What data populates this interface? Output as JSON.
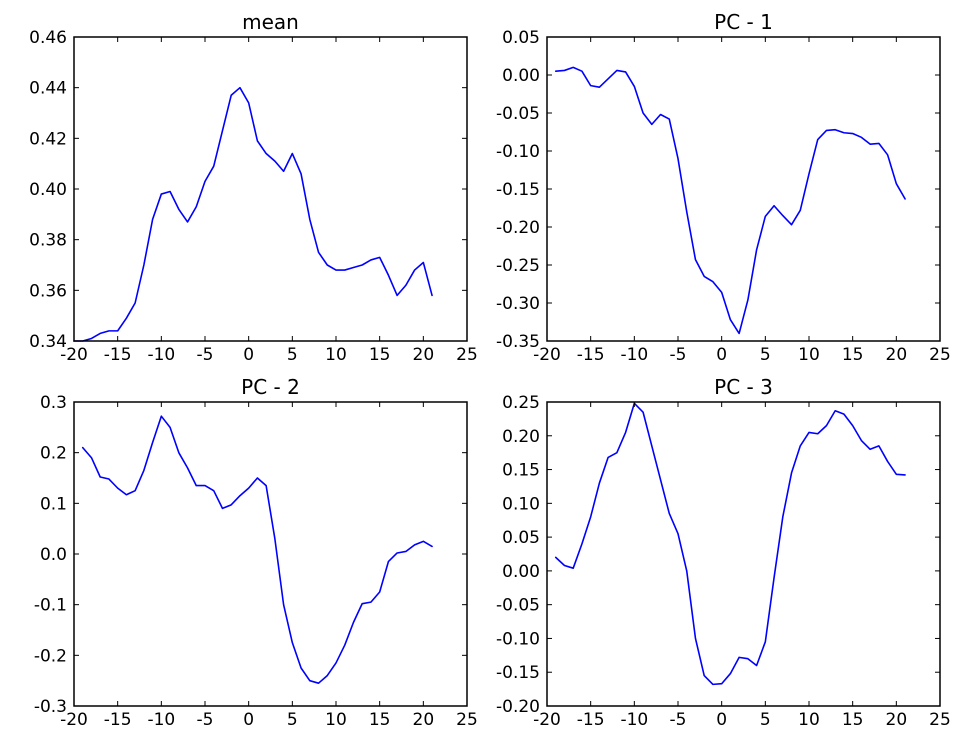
{
  "chart_data": [
    {
      "type": "line",
      "title": "mean",
      "xlabel": "",
      "ylabel": "",
      "xlim": [
        -20,
        25
      ],
      "ylim": [
        0.34,
        0.46
      ],
      "xticks": [
        -20,
        -15,
        -10,
        -5,
        0,
        5,
        10,
        15,
        20,
        25
      ],
      "xtick_labels": [
        "-20",
        "-15",
        "-10",
        "-5",
        "0",
        "5",
        "10",
        "15",
        "20",
        "25"
      ],
      "yticks": [
        0.34,
        0.36,
        0.38,
        0.4,
        0.42,
        0.44,
        0.46
      ],
      "ytick_labels": [
        "0.34",
        "0.36",
        "0.38",
        "0.40",
        "0.42",
        "0.44",
        "0.46"
      ],
      "grid": false,
      "color": "#0000ff",
      "x": [
        -20,
        -19,
        -18,
        -17,
        -16,
        -15,
        -14,
        -13,
        -12,
        -11,
        -10,
        -9,
        -8,
        -7,
        -6,
        -5,
        -4,
        -3,
        -2,
        -1,
        0,
        1,
        2,
        3,
        4,
        5,
        6,
        7,
        8,
        9,
        10,
        11,
        12,
        13,
        14,
        15,
        16,
        17,
        18,
        19,
        20,
        21
      ],
      "y": [
        0.34,
        0.34,
        0.341,
        0.343,
        0.344,
        0.344,
        0.349,
        0.355,
        0.37,
        0.388,
        0.398,
        0.399,
        0.392,
        0.387,
        0.393,
        0.403,
        0.409,
        0.423,
        0.437,
        0.44,
        0.434,
        0.419,
        0.414,
        0.411,
        0.407,
        0.414,
        0.406,
        0.388,
        0.375,
        0.37,
        0.368,
        0.368,
        0.369,
        0.37,
        0.372,
        0.373,
        0.366,
        0.358,
        0.362,
        0.368,
        0.371,
        0.358
      ]
    },
    {
      "type": "line",
      "title": "PC - 1",
      "xlabel": "",
      "ylabel": "",
      "xlim": [
        -20,
        25
      ],
      "ylim": [
        -0.35,
        0.05
      ],
      "xticks": [
        -20,
        -15,
        -10,
        -5,
        0,
        5,
        10,
        15,
        20,
        25
      ],
      "xtick_labels": [
        "-20",
        "-15",
        "-10",
        "-5",
        "0",
        "5",
        "10",
        "15",
        "20",
        "25"
      ],
      "yticks": [
        -0.35,
        -0.3,
        -0.25,
        -0.2,
        -0.15,
        -0.1,
        -0.05,
        0.0,
        0.05
      ],
      "ytick_labels": [
        "-0.35",
        "-0.30",
        "-0.25",
        "-0.20",
        "-0.15",
        "-0.10",
        "-0.05",
        "0.00",
        "0.05"
      ],
      "grid": false,
      "color": "#0000ff",
      "x": [
        -19,
        -18,
        -17,
        -16,
        -15,
        -14,
        -13,
        -12,
        -11,
        -10,
        -9,
        -8,
        -7,
        -6,
        -5,
        -4,
        -3,
        -2,
        -1,
        0,
        1,
        2,
        3,
        4,
        5,
        6,
        7,
        8,
        9,
        10,
        11,
        12,
        13,
        14,
        15,
        16,
        17,
        18,
        19,
        20,
        21
      ],
      "y": [
        0.005,
        0.006,
        0.01,
        0.005,
        -0.014,
        -0.016,
        -0.005,
        0.006,
        0.004,
        -0.015,
        -0.05,
        -0.065,
        -0.052,
        -0.058,
        -0.11,
        -0.18,
        -0.243,
        -0.265,
        -0.272,
        -0.286,
        -0.322,
        -0.34,
        -0.296,
        -0.23,
        -0.186,
        -0.172,
        -0.185,
        -0.197,
        -0.178,
        -0.13,
        -0.085,
        -0.073,
        -0.072,
        -0.076,
        -0.077,
        -0.082,
        -0.091,
        -0.09,
        -0.105,
        -0.143,
        -0.163
      ]
    },
    {
      "type": "line",
      "title": "PC - 2",
      "xlabel": "",
      "ylabel": "",
      "xlim": [
        -20,
        25
      ],
      "ylim": [
        -0.3,
        0.3
      ],
      "xticks": [
        -20,
        -15,
        -10,
        -5,
        0,
        5,
        10,
        15,
        20,
        25
      ],
      "xtick_labels": [
        "-20",
        "-15",
        "-10",
        "-5",
        "0",
        "5",
        "10",
        "15",
        "20",
        "25"
      ],
      "yticks": [
        -0.3,
        -0.2,
        -0.1,
        0.0,
        0.1,
        0.2,
        0.3
      ],
      "ytick_labels": [
        "-0.3",
        "-0.2",
        "-0.1",
        "0.0",
        "0.1",
        "0.2",
        "0.3"
      ],
      "grid": false,
      "color": "#0000ff",
      "x": [
        -19,
        -18,
        -17,
        -16,
        -15,
        -14,
        -13,
        -12,
        -11,
        -10,
        -9,
        -8,
        -7,
        -6,
        -5,
        -4,
        -3,
        -2,
        -1,
        0,
        1,
        2,
        3,
        4,
        5,
        6,
        7,
        8,
        9,
        10,
        11,
        12,
        13,
        14,
        15,
        16,
        17,
        18,
        19,
        20,
        21
      ],
      "y": [
        0.21,
        0.19,
        0.152,
        0.148,
        0.13,
        0.117,
        0.125,
        0.165,
        0.22,
        0.272,
        0.25,
        0.2,
        0.17,
        0.135,
        0.135,
        0.125,
        0.09,
        0.097,
        0.115,
        0.13,
        0.15,
        0.135,
        0.03,
        -0.1,
        -0.175,
        -0.225,
        -0.25,
        -0.255,
        -0.24,
        -0.215,
        -0.18,
        -0.135,
        -0.098,
        -0.095,
        -0.075,
        -0.015,
        0.002,
        0.005,
        0.018,
        0.025,
        0.015
      ]
    },
    {
      "type": "line",
      "title": "PC - 3",
      "xlabel": "",
      "ylabel": "",
      "xlim": [
        -20,
        25
      ],
      "ylim": [
        -0.2,
        0.25
      ],
      "xticks": [
        -20,
        -15,
        -10,
        -5,
        0,
        5,
        10,
        15,
        20,
        25
      ],
      "xtick_labels": [
        "-20",
        "-15",
        "-10",
        "-5",
        "0",
        "5",
        "10",
        "15",
        "20",
        "25"
      ],
      "yticks": [
        -0.2,
        -0.15,
        -0.1,
        -0.05,
        0.0,
        0.05,
        0.1,
        0.15,
        0.2,
        0.25
      ],
      "ytick_labels": [
        "-0.20",
        "-0.15",
        "-0.10",
        "-0.05",
        "0.00",
        "0.05",
        "0.10",
        "0.15",
        "0.20",
        "0.25"
      ],
      "grid": false,
      "color": "#0000ff",
      "x": [
        -19,
        -18,
        -17,
        -16,
        -15,
        -14,
        -13,
        -12,
        -11,
        -10,
        -9,
        -8,
        -7,
        -6,
        -5,
        -4,
        -3,
        -2,
        -1,
        0,
        1,
        2,
        3,
        4,
        5,
        6,
        7,
        8,
        9,
        10,
        11,
        12,
        13,
        14,
        15,
        16,
        17,
        18,
        19,
        20,
        21
      ],
      "y": [
        0.02,
        0.008,
        0.004,
        0.04,
        0.08,
        0.13,
        0.168,
        0.175,
        0.205,
        0.248,
        0.235,
        0.185,
        0.135,
        0.085,
        0.055,
        0.0,
        -0.1,
        -0.155,
        -0.168,
        -0.167,
        -0.152,
        -0.128,
        -0.13,
        -0.14,
        -0.105,
        -0.01,
        0.08,
        0.145,
        0.185,
        0.205,
        0.203,
        0.215,
        0.237,
        0.232,
        0.215,
        0.193,
        0.18,
        0.185,
        0.162,
        0.143,
        0.142
      ]
    }
  ]
}
